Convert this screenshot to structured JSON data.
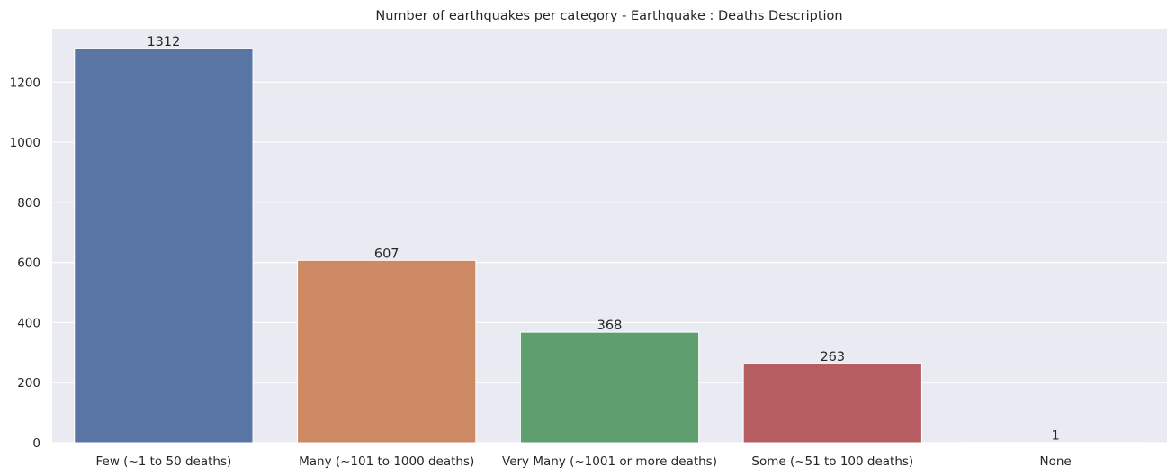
{
  "chart_data": {
    "type": "bar",
    "title": "Number of earthquakes per category - Earthquake : Deaths Description",
    "xlabel": "",
    "ylabel": "",
    "categories": [
      "Few (~1 to 50 deaths)",
      "Many (~101 to 1000 deaths)",
      "Very Many (~1001 or more deaths)",
      "Some (~51 to 100 deaths)",
      "None"
    ],
    "values": [
      1312,
      607,
      368,
      263,
      1
    ],
    "data_labels": [
      "1312",
      "607",
      "368",
      "263",
      "1"
    ],
    "colors": [
      "#5975a4",
      "#cc8963",
      "#5f9e6e",
      "#b55d60",
      "#857aab"
    ],
    "yticks": [
      0,
      200,
      400,
      600,
      800,
      1000,
      1200
    ],
    "ylim": [
      0,
      1377.6
    ],
    "grid": true,
    "background": "#eaeaf2",
    "grid_color": "#ffffff"
  }
}
